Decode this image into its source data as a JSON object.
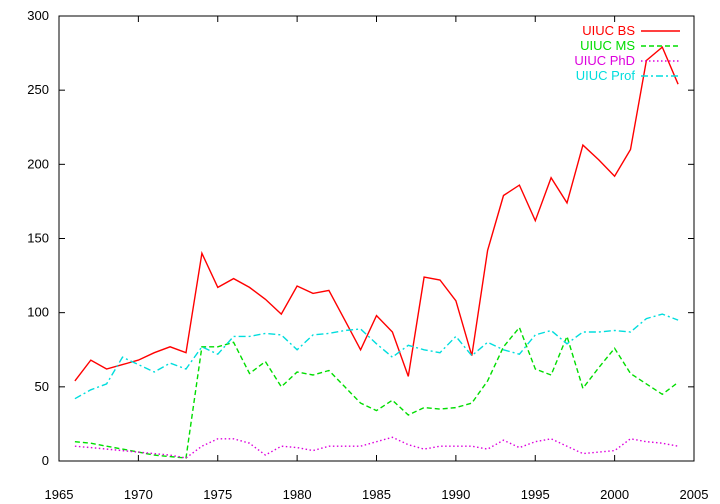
{
  "chart_data": {
    "type": "line",
    "title": "",
    "xlabel": "",
    "ylabel": "",
    "xlim": [
      1965,
      2005
    ],
    "ylim": [
      0,
      300
    ],
    "xticks": [
      1965,
      1970,
      1975,
      1980,
      1985,
      1990,
      1995,
      2000,
      2005
    ],
    "yticks": [
      0,
      50,
      100,
      150,
      200,
      250,
      300
    ],
    "grid": false,
    "legend": "top-right",
    "x": [
      1966,
      1967,
      1968,
      1969,
      1970,
      1971,
      1972,
      1973,
      1974,
      1975,
      1976,
      1977,
      1978,
      1979,
      1980,
      1981,
      1982,
      1983,
      1984,
      1985,
      1986,
      1987,
      1988,
      1989,
      1990,
      1991,
      1992,
      1993,
      1994,
      1995,
      1996,
      1997,
      1998,
      1999,
      2000,
      2001,
      2002,
      2003,
      2004
    ],
    "series": [
      {
        "name": "UIUC BS",
        "color": "#ff0000",
        "dash": "solid",
        "values": [
          54,
          68,
          62,
          65,
          68,
          73,
          77,
          73,
          140,
          117,
          123,
          117,
          109,
          99,
          118,
          113,
          115,
          95,
          75,
          98,
          87,
          57,
          124,
          122,
          108,
          71,
          142,
          179,
          186,
          162,
          191,
          174,
          213,
          203,
          192,
          210,
          270,
          279,
          254
        ]
      },
      {
        "name": "UIUC MS",
        "color": "#00dd00",
        "dash": "dashed",
        "values": [
          13,
          12,
          10,
          8,
          6,
          4,
          3,
          2,
          77,
          77,
          80,
          59,
          67,
          50,
          60,
          58,
          61,
          50,
          39,
          34,
          41,
          31,
          36,
          35,
          36,
          39,
          54,
          77,
          90,
          62,
          58,
          84,
          49,
          63,
          76,
          59,
          52,
          45,
          53
        ]
      },
      {
        "name": "UIUC PhD",
        "color": "#dd00dd",
        "dash": "dotted",
        "values": [
          10,
          9,
          8,
          7,
          6,
          5,
          4,
          2,
          10,
          15,
          15,
          12,
          4,
          10,
          9,
          7,
          10,
          10,
          10,
          13,
          16,
          11,
          8,
          10,
          10,
          10,
          8,
          14,
          9,
          13,
          15,
          10,
          5,
          6,
          7,
          15,
          13,
          12,
          10
        ]
      },
      {
        "name": "UIUC Prof",
        "color": "#00dddd",
        "dash": "dashdot",
        "values": [
          42,
          48,
          52,
          70,
          65,
          60,
          66,
          62,
          77,
          72,
          84,
          84,
          86,
          85,
          75,
          85,
          86,
          88,
          89,
          79,
          70,
          78,
          75,
          73,
          84,
          71,
          80,
          75,
          72,
          85,
          88,
          79,
          87,
          87,
          88,
          87,
          96,
          99,
          95
        ]
      }
    ]
  }
}
